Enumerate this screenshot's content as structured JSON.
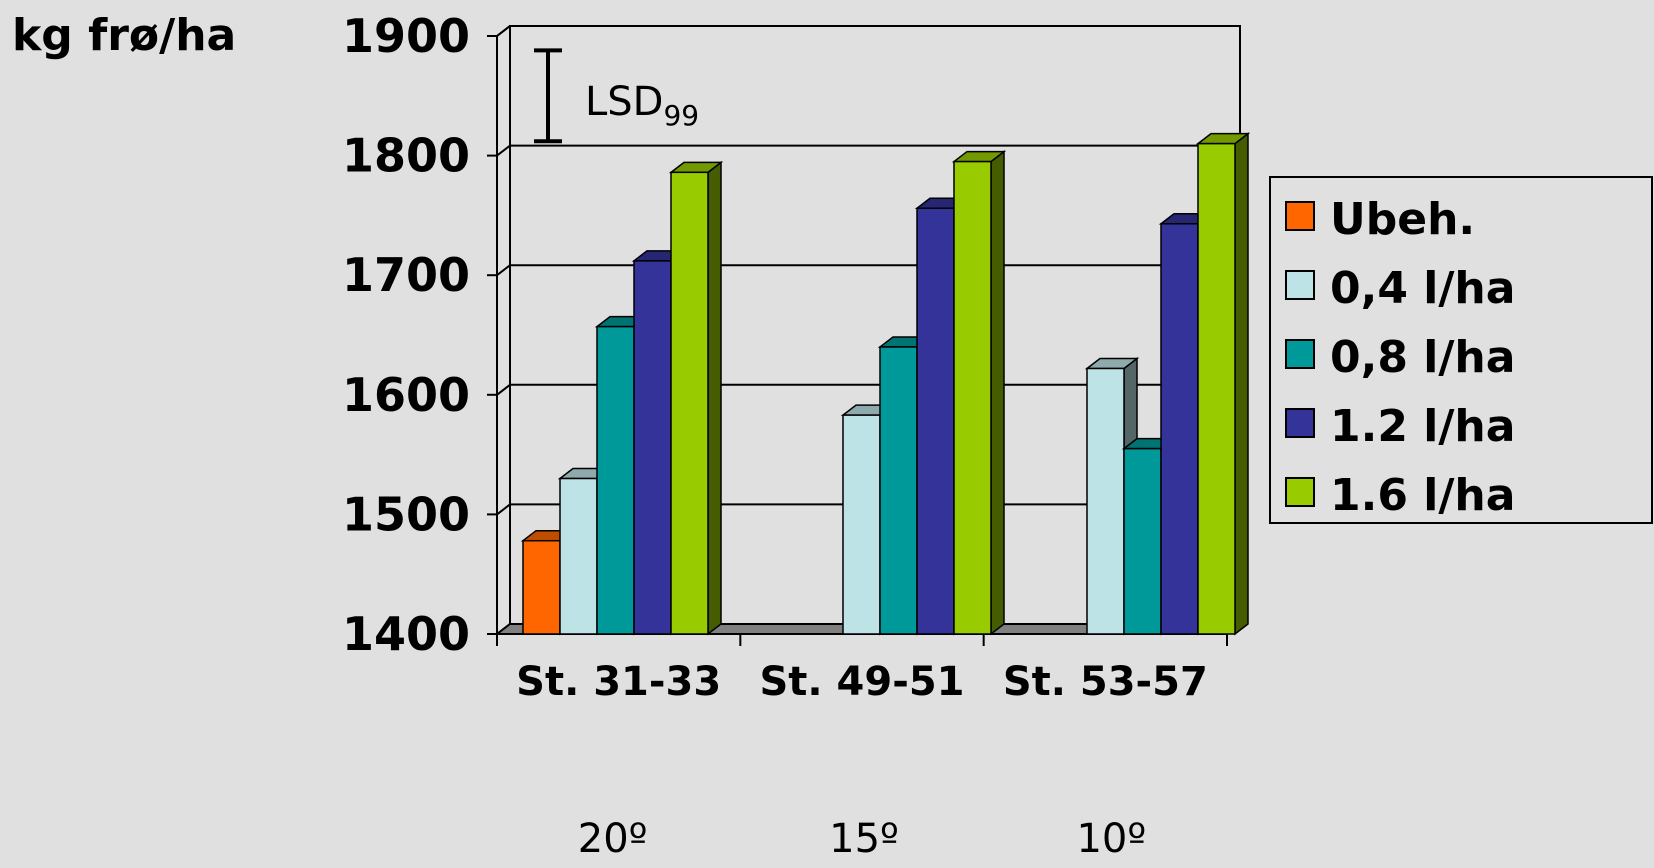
{
  "chart_data": {
    "type": "bar",
    "title": "",
    "ylabel": "kg frø/ha",
    "xlabel": "",
    "ylim": [
      1400,
      1900
    ],
    "yticks": [
      "1400",
      "1500",
      "1600",
      "1700",
      "1800",
      "1900"
    ],
    "categories": [
      "St. 31-33",
      "St. 49-51",
      "St. 53-57"
    ],
    "category_sublabels": [
      "20º",
      "15º",
      "10º"
    ],
    "series": [
      {
        "name": "Ubeh.",
        "color": "#ff6600",
        "values": [
          1478,
          null,
          null
        ]
      },
      {
        "name": "0,4 l/ha",
        "color": "#bde3e6",
        "values": [
          1530,
          1583,
          1622
        ]
      },
      {
        "name": "0,8 l/ha",
        "color": "#009999",
        "values": [
          1657,
          1640,
          1555
        ]
      },
      {
        "name": "1.2 l/ha",
        "color": "#333399",
        "values": [
          1712,
          1756,
          1743
        ]
      },
      {
        "name": "1.6 l/ha",
        "color": "#99cc00",
        "values": [
          1786,
          1795,
          1810
        ]
      }
    ],
    "annotation": {
      "text": "LSD",
      "subscript": "99",
      "low": 1812,
      "high": 1888
    },
    "grid": true,
    "legend_position": "right"
  }
}
